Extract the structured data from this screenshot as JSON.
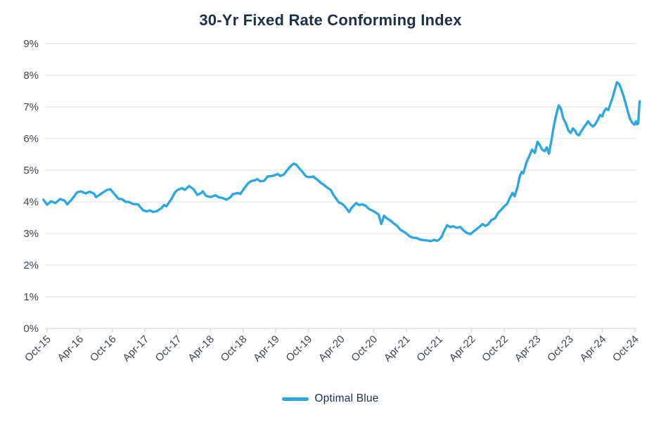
{
  "chart_data": {
    "type": "line",
    "title": "30-Yr Fixed Rate Conforming Index",
    "xlabel": "",
    "ylabel": "",
    "ylim": [
      0,
      9
    ],
    "y_tick_labels": [
      "0%",
      "1%",
      "2%",
      "3%",
      "4%",
      "5%",
      "6%",
      "7%",
      "8%",
      "9%"
    ],
    "x_tick_labels": [
      "Oct-15",
      "Apr-16",
      "Oct-16",
      "Apr-17",
      "Oct-17",
      "Apr-18",
      "Oct-18",
      "Apr-19",
      "Oct-19",
      "Apr-20",
      "Oct-20",
      "Apr-21",
      "Oct-21",
      "Apr-22",
      "Oct-22",
      "Apr-23",
      "Oct-23",
      "Apr-24",
      "Oct-24"
    ],
    "x_unit": "months_since_Oct-2015",
    "grid": "horizontal",
    "legend_position": "bottom-center",
    "colors": {
      "line": "#2da7dd",
      "title": "#1c304a",
      "tick_label": "#3a4552",
      "gridline": "#e5e5e5",
      "axis": "#d6d6d6"
    },
    "series": [
      {
        "name": "Optimal Blue",
        "points": [
          [
            -0.7,
            4.07
          ],
          [
            0,
            3.91
          ],
          [
            0.7,
            4.02
          ],
          [
            1.5,
            3.96
          ],
          [
            2.4,
            4.09
          ],
          [
            3.2,
            4.04
          ],
          [
            3.7,
            3.92
          ],
          [
            4.3,
            4.03
          ],
          [
            5.0,
            4.18
          ],
          [
            5.5,
            4.3
          ],
          [
            6.2,
            4.33
          ],
          [
            7.1,
            4.27
          ],
          [
            7.8,
            4.32
          ],
          [
            8.6,
            4.26
          ],
          [
            9.0,
            4.15
          ],
          [
            9.6,
            4.22
          ],
          [
            10.3,
            4.3
          ],
          [
            10.9,
            4.37
          ],
          [
            11.6,
            4.4
          ],
          [
            12.5,
            4.22
          ],
          [
            13.1,
            4.1
          ],
          [
            13.8,
            4.08
          ],
          [
            14.4,
            4.0
          ],
          [
            15.0,
            4.0
          ],
          [
            15.8,
            3.93
          ],
          [
            16.7,
            3.92
          ],
          [
            17.6,
            3.74
          ],
          [
            18.3,
            3.7
          ],
          [
            18.9,
            3.73
          ],
          [
            19.5,
            3.68
          ],
          [
            20.2,
            3.71
          ],
          [
            21.0,
            3.8
          ],
          [
            21.5,
            3.9
          ],
          [
            21.9,
            3.86
          ],
          [
            22.8,
            4.08
          ],
          [
            23.5,
            4.3
          ],
          [
            24.0,
            4.38
          ],
          [
            24.8,
            4.43
          ],
          [
            25.3,
            4.38
          ],
          [
            26.1,
            4.5
          ],
          [
            26.9,
            4.4
          ],
          [
            27.6,
            4.22
          ],
          [
            28.3,
            4.28
          ],
          [
            28.6,
            4.33
          ],
          [
            29.2,
            4.19
          ],
          [
            30.0,
            4.15
          ],
          [
            30.9,
            4.21
          ],
          [
            31.5,
            4.15
          ],
          [
            32.4,
            4.11
          ],
          [
            33.0,
            4.07
          ],
          [
            33.7,
            4.15
          ],
          [
            34.1,
            4.24
          ],
          [
            35.0,
            4.28
          ],
          [
            35.5,
            4.25
          ],
          [
            36.3,
            4.45
          ],
          [
            36.9,
            4.58
          ],
          [
            37.5,
            4.66
          ],
          [
            38.2,
            4.68
          ],
          [
            38.6,
            4.72
          ],
          [
            39.2,
            4.65
          ],
          [
            39.9,
            4.67
          ],
          [
            40.5,
            4.8
          ],
          [
            41.1,
            4.81
          ],
          [
            41.8,
            4.84
          ],
          [
            42.4,
            4.88
          ],
          [
            42.8,
            4.82
          ],
          [
            43.5,
            4.86
          ],
          [
            44.1,
            5.0
          ],
          [
            44.7,
            5.12
          ],
          [
            45.3,
            5.21
          ],
          [
            45.8,
            5.17
          ],
          [
            46.4,
            5.05
          ],
          [
            46.9,
            4.95
          ],
          [
            47.6,
            4.8
          ],
          [
            48.2,
            4.78
          ],
          [
            48.9,
            4.8
          ],
          [
            49.5,
            4.72
          ],
          [
            50.3,
            4.6
          ],
          [
            50.9,
            4.53
          ],
          [
            51.4,
            4.46
          ],
          [
            52.1,
            4.38
          ],
          [
            52.6,
            4.22
          ],
          [
            53.1,
            4.1
          ],
          [
            53.6,
            3.98
          ],
          [
            54.1,
            3.95
          ],
          [
            54.6,
            3.88
          ],
          [
            55.2,
            3.75
          ],
          [
            55.5,
            3.68
          ],
          [
            55.9,
            3.8
          ],
          [
            56.3,
            3.88
          ],
          [
            56.8,
            3.96
          ],
          [
            57.3,
            3.9
          ],
          [
            57.9,
            3.92
          ],
          [
            58.5,
            3.88
          ],
          [
            59.1,
            3.78
          ],
          [
            59.8,
            3.72
          ],
          [
            60.4,
            3.66
          ],
          [
            60.9,
            3.6
          ],
          [
            61.4,
            3.3
          ],
          [
            61.9,
            3.56
          ],
          [
            62.5,
            3.47
          ],
          [
            63.0,
            3.42
          ],
          [
            63.6,
            3.33
          ],
          [
            64.3,
            3.24
          ],
          [
            64.9,
            3.12
          ],
          [
            65.6,
            3.05
          ],
          [
            66.0,
            3.0
          ],
          [
            66.6,
            2.91
          ],
          [
            67.2,
            2.87
          ],
          [
            67.9,
            2.86
          ],
          [
            68.5,
            2.81
          ],
          [
            69.2,
            2.79
          ],
          [
            69.8,
            2.78
          ],
          [
            70.5,
            2.76
          ],
          [
            71.1,
            2.8
          ],
          [
            71.6,
            2.77
          ],
          [
            72.0,
            2.8
          ],
          [
            72.5,
            2.9
          ],
          [
            73.0,
            3.1
          ],
          [
            73.5,
            3.26
          ],
          [
            74.1,
            3.2
          ],
          [
            74.6,
            3.23
          ],
          [
            75.2,
            3.18
          ],
          [
            75.9,
            3.21
          ],
          [
            76.5,
            3.1
          ],
          [
            77.1,
            3.02
          ],
          [
            77.8,
            2.98
          ],
          [
            78.3,
            3.06
          ],
          [
            78.8,
            3.12
          ],
          [
            79.5,
            3.22
          ],
          [
            80.0,
            3.3
          ],
          [
            80.5,
            3.24
          ],
          [
            81.0,
            3.28
          ],
          [
            81.6,
            3.42
          ],
          [
            82.3,
            3.48
          ],
          [
            82.9,
            3.66
          ],
          [
            83.4,
            3.75
          ],
          [
            84.0,
            3.86
          ],
          [
            84.5,
            3.93
          ],
          [
            85.0,
            4.12
          ],
          [
            85.5,
            4.28
          ],
          [
            85.9,
            4.18
          ],
          [
            86.4,
            4.45
          ],
          [
            86.8,
            4.78
          ],
          [
            87.2,
            4.95
          ],
          [
            87.5,
            4.9
          ],
          [
            88.1,
            5.26
          ],
          [
            88.6,
            5.45
          ],
          [
            89.1,
            5.65
          ],
          [
            89.6,
            5.55
          ],
          [
            90.1,
            5.9
          ],
          [
            90.5,
            5.8
          ],
          [
            90.9,
            5.66
          ],
          [
            91.4,
            5.6
          ],
          [
            91.8,
            5.72
          ],
          [
            92.2,
            5.52
          ],
          [
            92.6,
            5.88
          ],
          [
            93.1,
            6.4
          ],
          [
            93.6,
            6.8
          ],
          [
            94.0,
            7.05
          ],
          [
            94.4,
            6.95
          ],
          [
            94.8,
            6.65
          ],
          [
            95.3,
            6.48
          ],
          [
            95.8,
            6.25
          ],
          [
            96.2,
            6.18
          ],
          [
            96.6,
            6.32
          ],
          [
            97.0,
            6.25
          ],
          [
            97.3,
            6.15
          ],
          [
            97.7,
            6.1
          ],
          [
            98.1,
            6.22
          ],
          [
            98.6,
            6.35
          ],
          [
            99.0,
            6.45
          ],
          [
            99.4,
            6.55
          ],
          [
            99.8,
            6.45
          ],
          [
            100.3,
            6.38
          ],
          [
            100.7,
            6.45
          ],
          [
            101.2,
            6.6
          ],
          [
            101.6,
            6.75
          ],
          [
            102.0,
            6.7
          ],
          [
            102.3,
            6.85
          ],
          [
            102.7,
            6.95
          ],
          [
            103.1,
            6.9
          ],
          [
            103.5,
            7.1
          ],
          [
            103.9,
            7.3
          ],
          [
            104.3,
            7.55
          ],
          [
            104.7,
            7.78
          ],
          [
            105.1,
            7.72
          ],
          [
            105.5,
            7.55
          ],
          [
            105.9,
            7.35
          ],
          [
            106.3,
            7.1
          ],
          [
            106.7,
            6.85
          ],
          [
            107.1,
            6.62
          ],
          [
            107.5,
            6.5
          ],
          [
            107.9,
            6.44
          ],
          [
            108.2,
            6.55
          ],
          [
            108.4,
            6.45
          ],
          [
            108.6,
            6.48
          ],
          [
            108.8,
            7.05
          ],
          [
            108.9,
            7.18
          ]
        ]
      }
    ]
  }
}
